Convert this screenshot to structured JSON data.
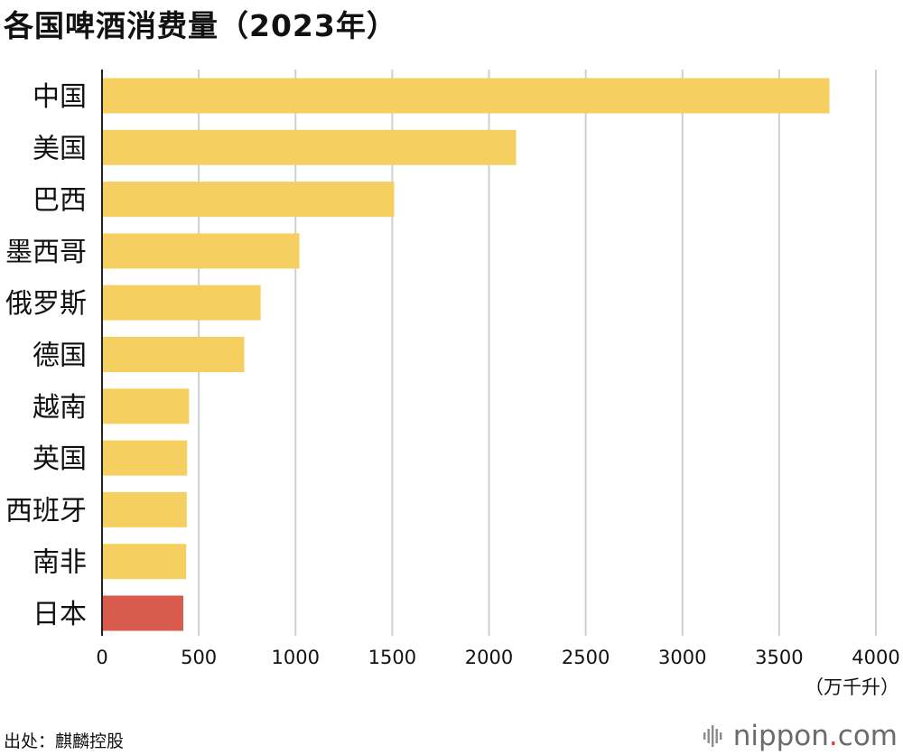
{
  "chart_data": {
    "type": "bar",
    "orientation": "horizontal",
    "title": "各国啤酒消费量（2023年）",
    "categories": [
      "中国",
      "美国",
      "巴西",
      "墨西哥",
      "俄罗斯",
      "德国",
      "越南",
      "英国",
      "西班牙",
      "南非",
      "日本"
    ],
    "values": [
      3760,
      2140,
      1510,
      1020,
      820,
      735,
      450,
      440,
      438,
      435,
      420
    ],
    "highlight_category": "日本",
    "colors": {
      "bar": "#F5D060",
      "highlight": "#D95B4E",
      "grid": "#cfcfcf",
      "axis": "#222222"
    },
    "xlim": [
      0,
      4000
    ],
    "xticks": [
      0,
      500,
      1000,
      1500,
      2000,
      2500,
      3000,
      3500,
      4000
    ],
    "unit": "（万千升）",
    "grid": true
  },
  "source": "出处：麒麟控股",
  "brand": {
    "name": "nippon",
    "dot": ".",
    "tld": "com",
    "icon": "nippon-logo-icon"
  }
}
